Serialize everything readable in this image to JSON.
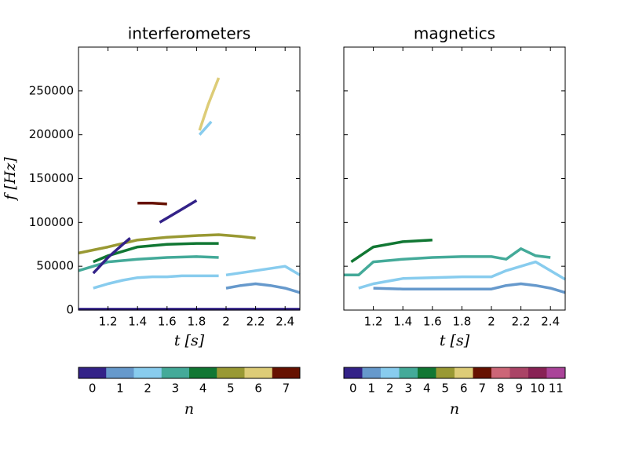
{
  "chart_data": [
    {
      "type": "line",
      "title": "interferometers",
      "xlabel": "t [s]",
      "ylabel": "f [Hz]",
      "xlim": [
        1.0,
        2.5
      ],
      "xticks": [
        1.2,
        1.4,
        1.6,
        1.8,
        2.0,
        2.2,
        2.4
      ],
      "ylim": [
        0,
        300000
      ],
      "yticks": [
        0,
        50000,
        100000,
        150000,
        200000,
        250000
      ],
      "ytick_labels": true,
      "colorbar": {
        "label": "n",
        "ticks": [
          0,
          1,
          2,
          3,
          4,
          5,
          6,
          7
        ],
        "colors": [
          "#332288",
          "#6699cc",
          "#88ccee",
          "#44aa99",
          "#117733",
          "#999933",
          "#ddcc77",
          "#661100"
        ]
      },
      "series": [
        {
          "mode": 2,
          "x": [
            1.1,
            1.2,
            1.3,
            1.4,
            1.5,
            1.6,
            1.7,
            1.8,
            1.9,
            1.95
          ],
          "values": [
            25000,
            30000,
            34000,
            37000,
            38000,
            38000,
            39000,
            39000,
            39000,
            39000
          ]
        },
        {
          "mode": 3,
          "x": [
            1.0,
            1.1,
            1.2,
            1.4,
            1.6,
            1.8,
            1.95
          ],
          "values": [
            45000,
            50000,
            55000,
            58000,
            60000,
            61000,
            60000
          ]
        },
        {
          "mode": 4,
          "x": [
            1.1,
            1.2,
            1.4,
            1.6,
            1.8,
            1.95
          ],
          "values": [
            55000,
            62000,
            72000,
            75000,
            76000,
            76000
          ]
        },
        {
          "mode": 5,
          "x": [
            1.0,
            1.2,
            1.4,
            1.6,
            1.8,
            1.95,
            2.1,
            2.2
          ],
          "values": [
            65000,
            72000,
            80000,
            83000,
            85000,
            86000,
            84000,
            82000
          ]
        },
        {
          "mode": 0,
          "x": [
            1.1,
            1.2,
            1.3,
            1.35
          ],
          "values": [
            42000,
            60000,
            75000,
            82000
          ]
        },
        {
          "mode": 0,
          "x": [
            1.55,
            1.6,
            1.7,
            1.8
          ],
          "values": [
            100000,
            105000,
            115000,
            125000
          ]
        },
        {
          "mode": 7,
          "x": [
            1.4,
            1.5,
            1.6
          ],
          "values": [
            122000,
            122000,
            121000
          ]
        },
        {
          "mode": 6,
          "x": [
            1.82,
            1.88,
            1.95
          ],
          "values": [
            205000,
            235000,
            265000
          ]
        },
        {
          "mode": 2,
          "x": [
            1.82,
            1.9
          ],
          "values": [
            200000,
            215000
          ]
        },
        {
          "mode": 1,
          "x": [
            2.0,
            2.1,
            2.2,
            2.3,
            2.4,
            2.5
          ],
          "values": [
            25000,
            28000,
            30000,
            28000,
            25000,
            20000
          ]
        },
        {
          "mode": 2,
          "x": [
            2.0,
            2.2,
            2.4,
            2.5
          ],
          "values": [
            40000,
            45000,
            50000,
            40000
          ]
        },
        {
          "mode": 0,
          "x": [
            1.0,
            2.5
          ],
          "values": [
            1000,
            1000
          ]
        }
      ]
    },
    {
      "type": "line",
      "title": "magnetics",
      "xlabel": "t [s]",
      "xlim": [
        1.0,
        2.5
      ],
      "xticks": [
        1.2,
        1.4,
        1.6,
        1.8,
        2.0,
        2.2,
        2.4
      ],
      "ylim": [
        0,
        300000
      ],
      "yticks": [
        0,
        50000,
        100000,
        150000,
        200000,
        250000
      ],
      "ytick_labels": false,
      "colorbar": {
        "label": "n",
        "ticks": [
          0,
          1,
          2,
          3,
          4,
          5,
          6,
          7,
          8,
          9,
          10,
          11
        ],
        "colors": [
          "#332288",
          "#6699cc",
          "#88ccee",
          "#44aa99",
          "#117733",
          "#999933",
          "#ddcc77",
          "#661100",
          "#cc6677",
          "#aa4466",
          "#882255",
          "#aa4499"
        ]
      },
      "series": [
        {
          "mode": 2,
          "x": [
            1.1,
            1.2,
            1.4,
            1.6,
            1.8,
            2.0,
            2.1,
            2.2,
            2.3,
            2.4,
            2.5
          ],
          "values": [
            25000,
            30000,
            36000,
            37000,
            38000,
            38000,
            45000,
            50000,
            55000,
            45000,
            35000
          ]
        },
        {
          "mode": 3,
          "x": [
            1.0,
            1.1,
            1.2,
            1.4,
            1.6,
            1.8,
            2.0,
            2.1,
            2.2,
            2.3,
            2.4
          ],
          "values": [
            40000,
            40000,
            55000,
            58000,
            60000,
            61000,
            61000,
            58000,
            70000,
            62000,
            60000
          ]
        },
        {
          "mode": 4,
          "x": [
            1.05,
            1.2,
            1.4,
            1.6
          ],
          "values": [
            55000,
            72000,
            78000,
            80000
          ]
        },
        {
          "mode": 1,
          "x": [
            1.2,
            1.4,
            1.6,
            1.8,
            2.0,
            2.1,
            2.2,
            2.3,
            2.4,
            2.5
          ],
          "values": [
            25000,
            24000,
            24000,
            24000,
            24000,
            28000,
            30000,
            28000,
            25000,
            20000
          ]
        }
      ]
    }
  ]
}
